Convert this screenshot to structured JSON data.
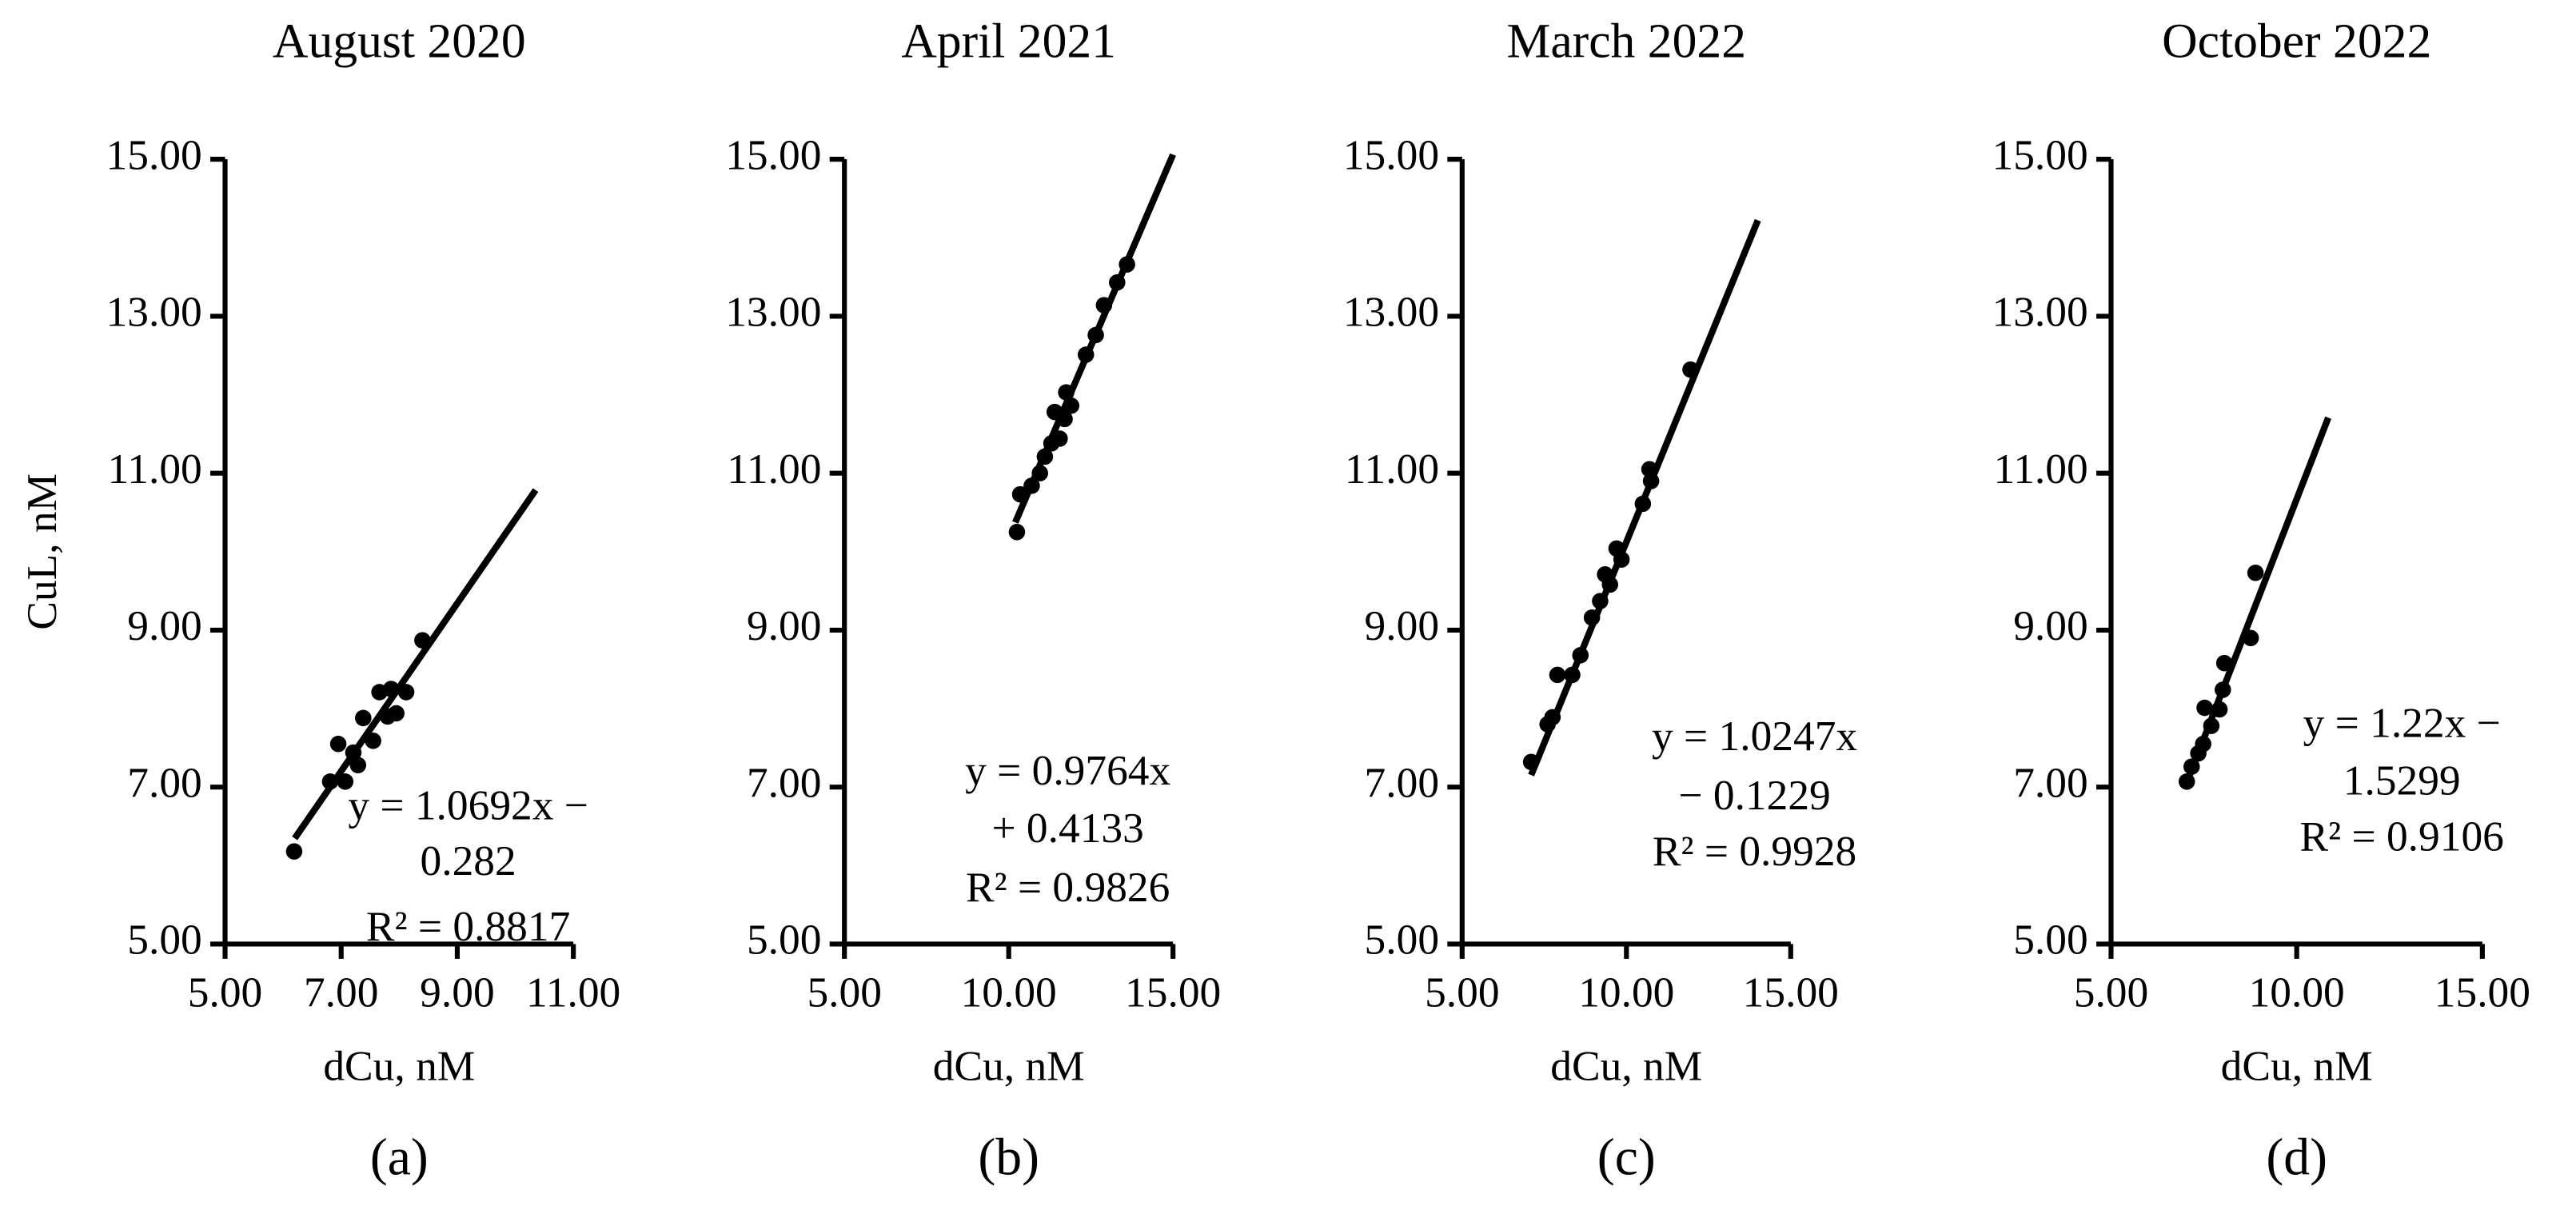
{
  "chart_data": [
    {
      "type": "scatter",
      "title": "August 2020",
      "panel_label": "(a)",
      "x_label": "dCu, nM",
      "y_label": "CuL, nM",
      "color": "#000000",
      "x": [
        6.19,
        6.81,
        6.95,
        7.07,
        7.21,
        7.29,
        7.38,
        7.55,
        7.66,
        7.8,
        7.86,
        7.95,
        8.12,
        8.4
      ],
      "y": [
        6.18,
        7.07,
        7.55,
        7.07,
        7.44,
        7.28,
        7.88,
        7.59,
        8.21,
        7.9,
        8.25,
        7.94,
        8.21,
        8.87
      ],
      "trendline": {
        "slope": 1.0692,
        "intercept": -0.282,
        "x_start": 6.2,
        "x_end": 10.35
      },
      "equation_lines": [
        "y = 1.0692x −",
        "0.282",
        "R² = 0.8817"
      ],
      "xlim": [
        5,
        11
      ],
      "ylim": [
        5,
        15
      ],
      "xticks": [
        {
          "value": 5,
          "label": "5.00"
        },
        {
          "value": 7,
          "label": "7.00"
        },
        {
          "value": 9,
          "label": "9.00"
        },
        {
          "value": 11,
          "label": "11.00"
        }
      ],
      "yticks": [
        {
          "value": 5,
          "label": "5.00"
        },
        {
          "value": 7,
          "label": "7.00"
        },
        {
          "value": 9,
          "label": "9.00"
        },
        {
          "value": 11,
          "label": "11.00"
        },
        {
          "value": 13,
          "label": "13.00"
        },
        {
          "value": 15,
          "label": "15.00"
        }
      ]
    },
    {
      "type": "scatter",
      "title": "April 2021",
      "panel_label": "(b)",
      "x_label": "dCu, nM",
      "color": "#000000",
      "x": [
        10.25,
        10.35,
        10.7,
        10.95,
        11.1,
        11.3,
        11.4,
        11.55,
        11.7,
        11.75,
        11.9,
        12.35,
        12.65,
        12.9,
        13.3,
        13.6
      ],
      "y": [
        10.25,
        10.73,
        10.84,
        11.0,
        11.21,
        11.38,
        11.78,
        11.44,
        11.69,
        12.03,
        11.86,
        12.51,
        12.76,
        13.14,
        13.43,
        13.66
      ],
      "trendline": {
        "slope": 0.9764,
        "intercept": 0.4133,
        "x_start": 10.2,
        "x_end": 15.0
      },
      "equation_lines": [
        "y = 0.9764x",
        "+ 0.4133",
        "R² = 0.9826"
      ],
      "xlim": [
        5,
        15
      ],
      "ylim": [
        5,
        15
      ],
      "xticks": [
        {
          "value": 5,
          "label": "5.00"
        },
        {
          "value": 10,
          "label": "10.00"
        },
        {
          "value": 15,
          "label": "15.00"
        }
      ],
      "yticks": [
        {
          "value": 5,
          "label": "5.00"
        },
        {
          "value": 7,
          "label": "7.00"
        },
        {
          "value": 9,
          "label": "9.00"
        },
        {
          "value": 11,
          "label": "11.00"
        },
        {
          "value": 13,
          "label": "13.00"
        },
        {
          "value": 15,
          "label": "15.00"
        }
      ]
    },
    {
      "type": "scatter",
      "title": "March 2022",
      "panel_label": "(c)",
      "x_label": "dCu, nM",
      "color": "#000000",
      "x": [
        7.1,
        7.6,
        7.75,
        7.9,
        8.35,
        8.6,
        8.95,
        9.2,
        9.35,
        9.5,
        9.7,
        9.85,
        10.5,
        10.7,
        10.75,
        11.95
      ],
      "y": [
        7.32,
        7.8,
        7.89,
        8.43,
        8.43,
        8.68,
        9.16,
        9.37,
        9.71,
        9.58,
        10.04,
        9.9,
        10.61,
        11.05,
        10.9,
        12.32
      ],
      "trendline": {
        "slope": 1.0247,
        "intercept": -0.1229,
        "x_start": 7.1,
        "x_end": 14.0
      },
      "equation_lines": [
        "y = 1.0247x",
        "− 0.1229",
        "R² = 0.9928"
      ],
      "xlim": [
        5,
        15
      ],
      "ylim": [
        5,
        15
      ],
      "xticks": [
        {
          "value": 5,
          "label": "5.00"
        },
        {
          "value": 10,
          "label": "10.00"
        },
        {
          "value": 15,
          "label": "15.00"
        }
      ],
      "yticks": [
        {
          "value": 5,
          "label": "5.00"
        },
        {
          "value": 7,
          "label": "7.00"
        },
        {
          "value": 9,
          "label": "9.00"
        },
        {
          "value": 11,
          "label": "11.00"
        },
        {
          "value": 13,
          "label": "13.00"
        },
        {
          "value": 15,
          "label": "15.00"
        }
      ]
    },
    {
      "type": "scatter",
      "title": "October 2022",
      "panel_label": "(d)",
      "x_label": "dCu, nM",
      "color": "#000000",
      "x": [
        7.04,
        7.17,
        7.35,
        7.48,
        7.52,
        7.7,
        7.92,
        8.01,
        8.05,
        8.76,
        8.89
      ],
      "y": [
        7.07,
        7.26,
        7.43,
        7.55,
        8.01,
        7.78,
        7.99,
        8.24,
        8.58,
        8.9,
        9.73
      ],
      "trendline": {
        "slope": 1.22,
        "intercept": -1.5299,
        "x_start": 7.0,
        "x_end": 10.85
      },
      "equation_lines": [
        "y = 1.22x −",
        "1.5299",
        "R² = 0.9106"
      ],
      "xlim": [
        5,
        15
      ],
      "ylim": [
        5,
        15
      ],
      "xticks": [
        {
          "value": 5,
          "label": "5.00"
        },
        {
          "value": 10,
          "label": "10.00"
        },
        {
          "value": 15,
          "label": "15.00"
        }
      ],
      "yticks": [
        {
          "value": 5,
          "label": "5.00"
        },
        {
          "value": 7,
          "label": "7.00"
        },
        {
          "value": 9,
          "label": "9.00"
        },
        {
          "value": 11,
          "label": "11.00"
        },
        {
          "value": 13,
          "label": "13.00"
        },
        {
          "value": 15,
          "label": "15.00"
        }
      ]
    }
  ]
}
